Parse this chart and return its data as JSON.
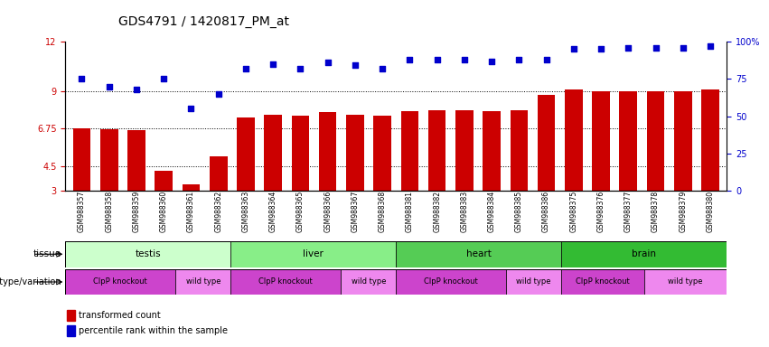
{
  "title": "GDS4791 / 1420817_PM_at",
  "samples": [
    "GSM988357",
    "GSM988358",
    "GSM988359",
    "GSM988360",
    "GSM988361",
    "GSM988362",
    "GSM988363",
    "GSM988364",
    "GSM988365",
    "GSM988366",
    "GSM988367",
    "GSM988368",
    "GSM988381",
    "GSM988382",
    "GSM988383",
    "GSM988384",
    "GSM988385",
    "GSM988386",
    "GSM988375",
    "GSM988376",
    "GSM988377",
    "GSM988378",
    "GSM988379",
    "GSM988380"
  ],
  "bar_values": [
    6.75,
    6.7,
    6.65,
    4.2,
    3.4,
    5.1,
    7.4,
    7.6,
    7.55,
    7.75,
    7.6,
    7.55,
    7.8,
    7.85,
    7.85,
    7.8,
    7.85,
    8.8,
    9.1,
    9.0,
    9.0,
    9.0,
    9.0,
    9.1
  ],
  "percentile_values": [
    75,
    70,
    68,
    75,
    55,
    65,
    82,
    85,
    82,
    86,
    84,
    82,
    88,
    88,
    88,
    87,
    88,
    88,
    95,
    95,
    96,
    96,
    96,
    97
  ],
  "ylim_left": [
    3,
    12
  ],
  "ylim_right": [
    0,
    100
  ],
  "yticks_left": [
    3,
    4.5,
    6.75,
    9,
    12
  ],
  "ytick_labels_left": [
    "3",
    "4.5",
    "6.75",
    "9",
    "12"
  ],
  "yticks_right": [
    0,
    25,
    50,
    75,
    100
  ],
  "ytick_labels_right": [
    "0",
    "25",
    "50",
    "75",
    "100%"
  ],
  "hlines": [
    4.5,
    6.75,
    9
  ],
  "bar_color": "#cc0000",
  "dot_color": "#0000cc",
  "bar_width": 0.65,
  "tissue_groups": [
    {
      "label": "testis",
      "start": 0,
      "end": 6,
      "color": "#ccffcc"
    },
    {
      "label": "liver",
      "start": 6,
      "end": 12,
      "color": "#88ee88"
    },
    {
      "label": "heart",
      "start": 12,
      "end": 18,
      "color": "#55cc55"
    },
    {
      "label": "brain",
      "start": 18,
      "end": 24,
      "color": "#33bb33"
    }
  ],
  "genotype_groups": [
    {
      "label": "ClpP knockout",
      "start": 0,
      "end": 4,
      "color": "#cc44cc"
    },
    {
      "label": "wild type",
      "start": 4,
      "end": 6,
      "color": "#ee88ee"
    },
    {
      "label": "ClpP knockout",
      "start": 6,
      "end": 10,
      "color": "#cc44cc"
    },
    {
      "label": "wild type",
      "start": 10,
      "end": 12,
      "color": "#ee88ee"
    },
    {
      "label": "ClpP knockout",
      "start": 12,
      "end": 16,
      "color": "#cc44cc"
    },
    {
      "label": "wild type",
      "start": 16,
      "end": 18,
      "color": "#ee88ee"
    },
    {
      "label": "ClpP knockout",
      "start": 18,
      "end": 21,
      "color": "#cc44cc"
    },
    {
      "label": "wild type",
      "start": 21,
      "end": 24,
      "color": "#ee88ee"
    }
  ],
  "tissue_row_label": "tissue",
  "genotype_row_label": "genotype/variation",
  "legend_bar_label": "transformed count",
  "legend_dot_label": "percentile rank within the sample",
  "title_fontsize": 10,
  "tick_fontsize": 7,
  "background_color": "#ffffff"
}
